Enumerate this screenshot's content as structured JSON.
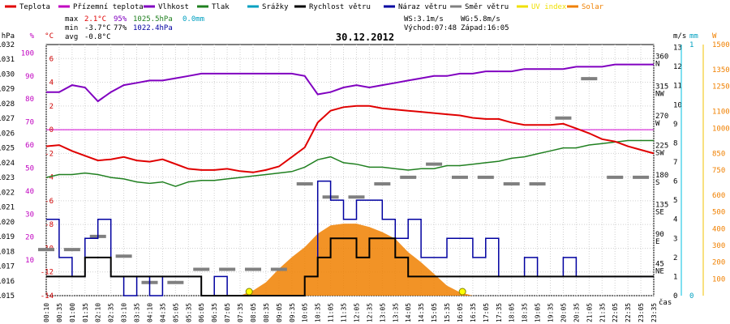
{
  "chart_data": {
    "type": "line",
    "title": "30.12.2012",
    "legend": [
      {
        "name": "Teplota",
        "color": "#e00000"
      },
      {
        "name": "Přízemní teplota",
        "color": "#c000c0"
      },
      {
        "name": "Vlhkost",
        "color": "#8000c0"
      },
      {
        "name": "Tlak",
        "color": "#208020"
      },
      {
        "name": "Srážky",
        "color": "#00a0c0"
      },
      {
        "name": "Rychlost větru",
        "color": "#000000"
      },
      {
        "name": "Náraz větru",
        "color": "#0000a0"
      },
      {
        "name": "Směr větru",
        "color": "#808080"
      },
      {
        "name": "UV index",
        "color": "#f0e000"
      },
      {
        "name": "Solar",
        "color": "#f08000"
      }
    ],
    "stats": {
      "max": {
        "label": "max",
        "temp": "2.1°C",
        "hum": "95%",
        "press": "1025.5hPa",
        "rain": "0.0mm"
      },
      "min": {
        "label": "min",
        "temp": "-3.7°C",
        "hum": "77%",
        "press": "1022.4hPa"
      },
      "avg": {
        "label": "avg",
        "temp": "-0.8°C"
      }
    },
    "wind_info": {
      "ws": "WS:3.1m/s",
      "wg": "WG:5.8m/s",
      "sunrise": "Východ:07:48",
      "sunset": "Západ:16:05"
    },
    "axes": {
      "left": [
        {
          "unit": "hPa",
          "ticks": [
            "1015",
            "1016",
            "1017",
            "1018",
            "1019",
            "1020",
            "1021",
            "1022",
            "1023",
            "1024",
            "1025",
            "1026",
            "1027",
            "1028",
            "1029",
            "1030",
            "1031",
            "1032"
          ],
          "range": [
            1015,
            1032
          ]
        },
        {
          "unit": "%",
          "ticks": [
            "10",
            "20",
            "30",
            "40",
            "50",
            "60",
            "70",
            "80",
            "90",
            "100"
          ],
          "range": [
            -5.45,
            103.64
          ]
        },
        {
          "unit": "°C",
          "ticks": [
            "-14",
            "-12",
            "-10",
            "-8",
            "-6",
            "-4",
            "-2",
            "0",
            "2",
            "4",
            "6"
          ],
          "range": [
            -14,
            7.18
          ]
        }
      ],
      "right": [
        {
          "unit": "",
          "ticks": [
            "45 NE",
            "90 E",
            "135 SE",
            "180 S",
            "225 SW",
            "270 W",
            "315 NW",
            "360 N"
          ],
          "range": [
            0,
            381.82
          ]
        },
        {
          "unit": "m/s",
          "ticks": [
            "0",
            "1",
            "2",
            "3",
            "4",
            "5",
            "6",
            "7",
            "8",
            "9",
            "10",
            "11",
            "12",
            "13"
          ],
          "range": [
            0,
            13.15
          ]
        },
        {
          "unit": "mm",
          "ticks": [
            "0",
            "1"
          ],
          "range": [
            0,
            1
          ]
        },
        {
          "unit": "W",
          "ticks": [
            "100",
            "200",
            "300",
            "400",
            "500",
            "600",
            "750",
            "850",
            "1000",
            "1100",
            "1250",
            "1350",
            "1500"
          ],
          "range": [
            0,
            1500
          ]
        }
      ],
      "x_label": "čas",
      "x_ticks": [
        "00:10",
        "00:35",
        "01:00",
        "01:35",
        "02:10",
        "02:35",
        "03:10",
        "03:35",
        "04:10",
        "04:35",
        "05:05",
        "05:35",
        "06:05",
        "06:35",
        "07:05",
        "07:35",
        "08:05",
        "08:35",
        "09:05",
        "09:35",
        "10:05",
        "10:35",
        "11:05",
        "11:35",
        "12:05",
        "12:35",
        "13:05",
        "13:35",
        "14:05",
        "14:35",
        "15:05",
        "15:35",
        "16:05",
        "16:35",
        "17:05",
        "17:35",
        "18:05",
        "18:35",
        "19:05",
        "19:35",
        "20:05",
        "20:35",
        "21:05",
        "21:35",
        "22:05",
        "22:35",
        "23:05",
        "23:35"
      ]
    },
    "series": [
      {
        "name": "Teplota",
        "x": [
          0,
          1,
          2,
          3,
          4,
          5,
          6,
          7,
          8,
          9,
          10,
          11,
          12,
          13,
          14,
          15,
          16,
          17,
          18,
          19,
          20,
          21,
          22,
          23,
          24,
          25,
          26,
          27,
          28,
          29,
          30,
          31,
          32,
          33,
          34,
          35,
          36,
          37,
          38,
          39,
          40,
          41,
          42,
          43,
          44,
          45,
          46,
          47
        ],
        "values": [
          -1.4,
          -1.3,
          -1.8,
          -2.2,
          -2.6,
          -2.5,
          -2.3,
          -2.6,
          -2.7,
          -2.5,
          -2.9,
          -3.3,
          -3.4,
          -3.4,
          -3.3,
          -3.5,
          -3.6,
          -3.4,
          -3.1,
          -2.3,
          -1.5,
          0.6,
          1.6,
          1.9,
          2.0,
          2.0,
          1.8,
          1.7,
          1.6,
          1.5,
          1.4,
          1.3,
          1.2,
          1.0,
          0.9,
          0.9,
          0.6,
          0.4,
          0.4,
          0.4,
          0.5,
          0.1,
          -0.3,
          -0.8,
          -1.0,
          -1.4,
          -1.7,
          -2.0
        ]
      },
      {
        "name": "Vlhkost",
        "x": [
          0,
          1,
          2,
          3,
          4,
          5,
          6,
          7,
          8,
          9,
          10,
          11,
          12,
          13,
          14,
          15,
          16,
          17,
          18,
          19,
          20,
          21,
          22,
          23,
          24,
          25,
          26,
          27,
          28,
          29,
          30,
          31,
          32,
          33,
          34,
          35,
          36,
          37,
          38,
          39,
          40,
          41,
          42,
          43,
          44,
          45,
          46,
          47
        ],
        "values": [
          83,
          83,
          86,
          85,
          79,
          83,
          86,
          87,
          88,
          88,
          89,
          90,
          91,
          91,
          91,
          91,
          91,
          91,
          91,
          91,
          90,
          82,
          83,
          85,
          86,
          85,
          86,
          87,
          88,
          89,
          90,
          90,
          91,
          91,
          92,
          92,
          92,
          93,
          93,
          93,
          93,
          94,
          94,
          94,
          95,
          95,
          95,
          95
        ]
      },
      {
        "name": "Tlak",
        "x": [
          0,
          1,
          2,
          3,
          4,
          5,
          6,
          7,
          8,
          9,
          10,
          11,
          12,
          13,
          14,
          15,
          16,
          17,
          18,
          19,
          20,
          21,
          22,
          23,
          24,
          25,
          26,
          27,
          28,
          29,
          30,
          31,
          32,
          33,
          34,
          35,
          36,
          37,
          38,
          39,
          40,
          41,
          42,
          43,
          44,
          45,
          46,
          47
        ],
        "values": [
          1023.0,
          1023.2,
          1023.2,
          1023.3,
          1023.2,
          1023.0,
          1022.9,
          1022.7,
          1022.6,
          1022.7,
          1022.4,
          1022.7,
          1022.8,
          1022.8,
          1022.9,
          1023.0,
          1023.1,
          1023.2,
          1023.3,
          1023.4,
          1023.7,
          1024.2,
          1024.4,
          1024.0,
          1023.9,
          1023.7,
          1023.7,
          1023.6,
          1023.5,
          1023.6,
          1023.6,
          1023.8,
          1023.8,
          1023.9,
          1024.0,
          1024.1,
          1024.3,
          1024.4,
          1024.6,
          1024.8,
          1025.0,
          1025.0,
          1025.2,
          1025.3,
          1025.4,
          1025.5,
          1025.5,
          1025.5
        ]
      },
      {
        "name": "Rychlost větru",
        "x": [
          0,
          1,
          2,
          3,
          4,
          5,
          6,
          7,
          8,
          9,
          10,
          11,
          12,
          13,
          14,
          15,
          16,
          17,
          18,
          19,
          20,
          21,
          22,
          23,
          24,
          25,
          26,
          27,
          28,
          29,
          30,
          31,
          32,
          33,
          34,
          35,
          36,
          37,
          38,
          39,
          40,
          41,
          42,
          43,
          44,
          45,
          46,
          47
        ],
        "values": [
          1,
          1,
          1,
          2,
          2,
          1,
          1,
          1,
          1,
          1,
          1,
          1,
          0,
          0,
          0,
          0,
          0,
          0,
          0,
          0,
          1,
          2,
          3,
          3,
          2,
          3,
          3,
          2,
          1,
          1,
          1,
          1,
          1,
          1,
          1,
          1,
          1,
          1,
          1,
          1,
          1,
          1,
          1,
          1,
          1,
          1,
          1,
          1
        ]
      },
      {
        "name": "Náraz větru",
        "x": [
          0,
          1,
          2,
          3,
          4,
          5,
          6,
          7,
          8,
          9,
          10,
          11,
          12,
          13,
          14,
          15,
          16,
          17,
          18,
          19,
          20,
          21,
          22,
          23,
          24,
          25,
          26,
          27,
          28,
          29,
          30,
          31,
          32,
          33,
          34,
          35,
          36,
          37,
          38,
          39,
          40,
          41,
          42,
          43,
          44,
          45,
          46,
          47
        ],
        "values": [
          4,
          2,
          1,
          3,
          4,
          1,
          0,
          1,
          0,
          1,
          1,
          1,
          0,
          1,
          0,
          0,
          0,
          0,
          0,
          0,
          1,
          6,
          5,
          4,
          5,
          5,
          4,
          3,
          4,
          2,
          2,
          3,
          3,
          2,
          3,
          1,
          1,
          2,
          1,
          1,
          2,
          1,
          1,
          1,
          1,
          1,
          1,
          1
        ]
      },
      {
        "name": "Směr větru",
        "x": [
          0,
          2,
          4,
          6,
          8,
          10,
          12,
          14,
          16,
          18,
          20,
          22,
          24,
          26,
          28,
          30,
          32,
          34,
          36,
          38,
          40,
          42,
          44,
          46
        ],
        "values": [
          70,
          70,
          90,
          60,
          20,
          20,
          40,
          40,
          40,
          40,
          170,
          150,
          150,
          170,
          180,
          200,
          180,
          180,
          170,
          170,
          270,
          330,
          180,
          180
        ]
      },
      {
        "name": "Solar",
        "x": [
          0,
          15,
          16,
          17,
          18,
          19,
          20,
          21,
          22,
          23,
          24,
          25,
          26,
          27,
          28,
          29,
          30,
          31,
          32,
          33,
          47
        ],
        "values": [
          0,
          0,
          30,
          80,
          160,
          230,
          290,
          370,
          420,
          430,
          430,
          410,
          380,
          340,
          260,
          200,
          130,
          60,
          20,
          0,
          0
        ]
      }
    ]
  }
}
